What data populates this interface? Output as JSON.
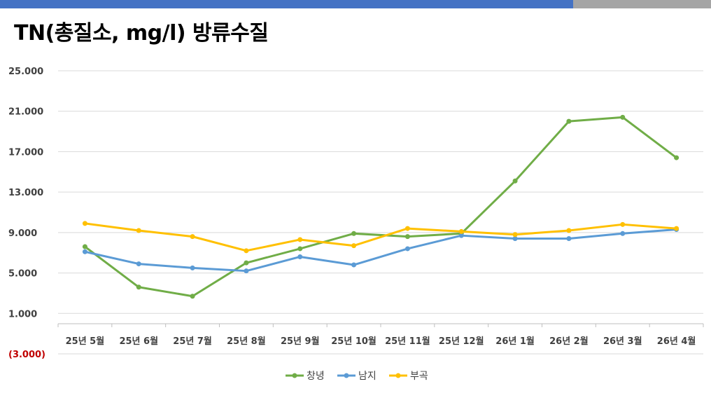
{
  "page": {
    "title": "TN(총질소, mg/l) 방류수질"
  },
  "chart_data": {
    "type": "line",
    "title": "TN(총질소, mg/l) 방류수질",
    "categories": [
      "25년 5월",
      "25년 6월",
      "25년 7월",
      "25년 8월",
      "25년 9월",
      "25년 10월",
      "25년 11월",
      "25년 12월",
      "26년 1월",
      "26년 2월",
      "26년 3월",
      "26년 4월"
    ],
    "y_ticks": [
      {
        "value": 25,
        "label": "25.000"
      },
      {
        "value": 21,
        "label": "21.000"
      },
      {
        "value": 17,
        "label": "17.000"
      },
      {
        "value": 13,
        "label": "13.000"
      },
      {
        "value": 9,
        "label": "9.000"
      },
      {
        "value": 5,
        "label": "5.000"
      },
      {
        "value": 1,
        "label": "1.000"
      },
      {
        "value": -3,
        "label": "(3.000)"
      }
    ],
    "ylim": [
      -3,
      25
    ],
    "grid": true,
    "legend_position": "bottom",
    "series": [
      {
        "name": "창녕",
        "color": "#70ad47",
        "values": [
          7.6,
          3.6,
          2.7,
          6.0,
          7.4,
          8.9,
          8.6,
          8.9,
          14.1,
          20.0,
          20.4,
          16.4
        ]
      },
      {
        "name": "남지",
        "color": "#5b9bd5",
        "values": [
          7.1,
          5.9,
          5.5,
          5.2,
          6.6,
          5.8,
          7.4,
          8.7,
          8.4,
          8.4,
          8.9,
          9.3
        ]
      },
      {
        "name": "부곡",
        "color": "#ffc000",
        "values": [
          9.9,
          9.2,
          8.6,
          7.2,
          8.3,
          7.7,
          9.4,
          9.1,
          8.8,
          9.2,
          9.8,
          9.4
        ]
      }
    ]
  }
}
